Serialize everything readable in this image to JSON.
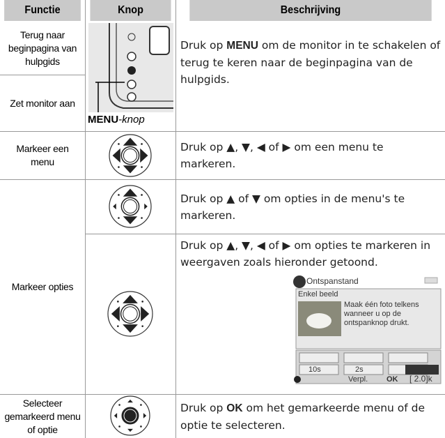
{
  "header": {
    "columns": [
      "Functie",
      "Knop",
      "Beschrijving"
    ]
  },
  "rows": [
    {
      "functie": [
        "Terug naar beginpagina van hulpgids",
        "Zet monitor aan"
      ],
      "knop_label": {
        "bold": "MENU",
        "italic": "-knop"
      },
      "beschrijving": {
        "before": "Druk op ",
        "key": "MENU",
        "after": " om de monitor in te schakelen of terug te keren naar de beginpagina van de hulpgids."
      }
    },
    {
      "functie": [
        "Markeer een menu"
      ],
      "beschrijving": "Druk op ▲, ▼, ◀ of ▶ om een menu te markeren."
    },
    {
      "functie": [
        "Markeer opties"
      ],
      "beschrijving": [
        "Druk op ▲ of ▼ om opties in de menu's te markeren.",
        "Druk op ▲, ▼, ◀ of ▶ om opties te markeren in weergaven zoals hieronder getoond."
      ],
      "screen": {
        "title": "Ontspanstand",
        "mode": "Enkel beeld",
        "text": "Maak één foto telkens wanneer u op de ontspanknop drukt.",
        "timer": "10s",
        "remote": "2s",
        "nav": "Verpl.",
        "ok": "OK",
        "count": "[ 2.0]k"
      }
    },
    {
      "functie": [
        "Selecteer gemarkeerd menu of optie"
      ],
      "beschrijving": {
        "before": "Druk op ",
        "key": "OK",
        "after": " om het gemarkeerde menu of de optie te selecteren."
      }
    }
  ]
}
